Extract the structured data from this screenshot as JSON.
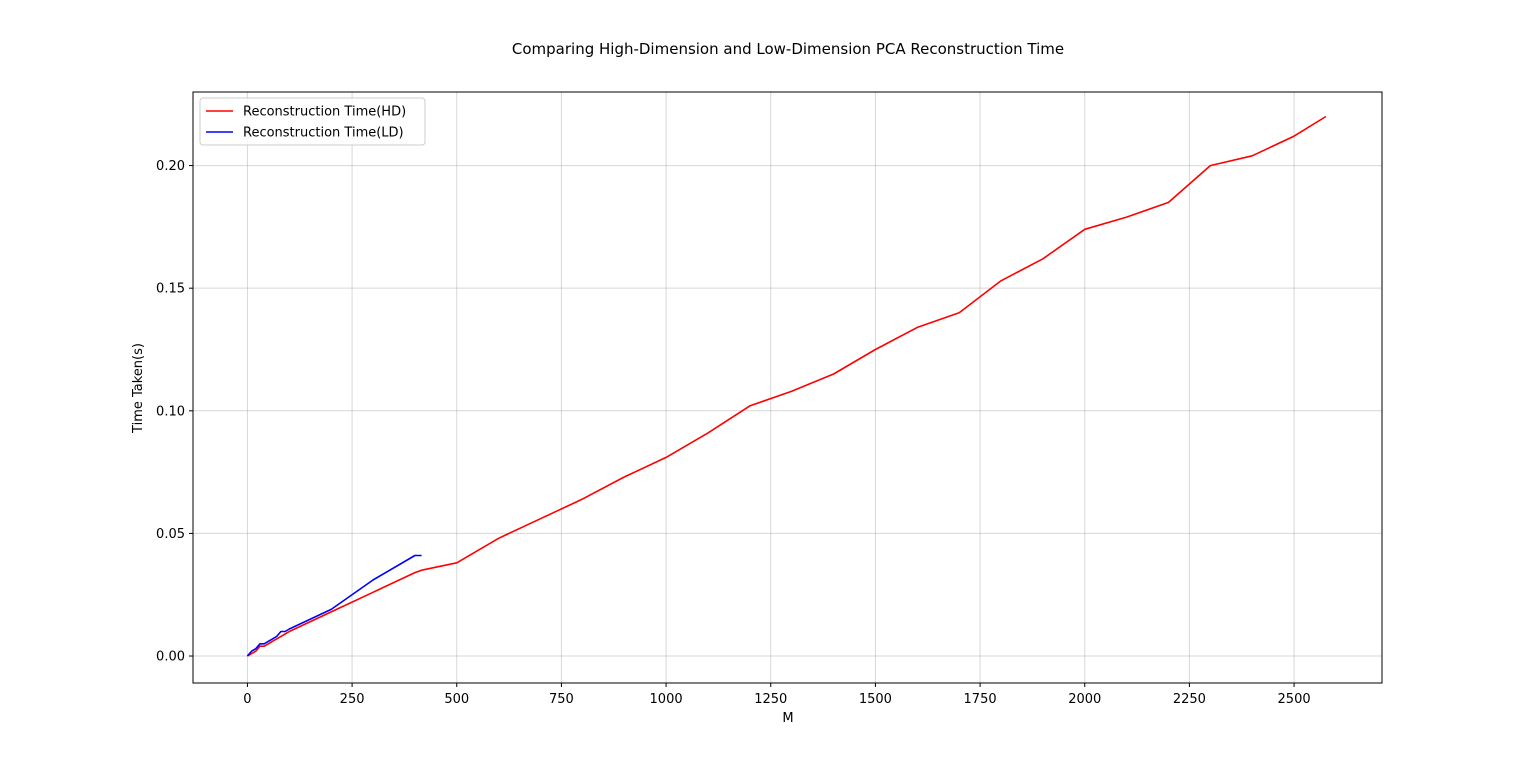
{
  "chart_data": {
    "type": "line",
    "title": "Comparing High-Dimension and Low-Dimension PCA Reconstruction Time",
    "xlabel": "M",
    "ylabel": "Time Taken(s)",
    "xlim": [
      -130,
      2710
    ],
    "ylim": [
      -0.011,
      0.23
    ],
    "xticks": [
      0,
      250,
      500,
      750,
      1000,
      1250,
      1500,
      1750,
      2000,
      2250,
      2500
    ],
    "xtick_labels": [
      "0",
      "250",
      "500",
      "750",
      "1000",
      "1250",
      "1500",
      "1750",
      "2000",
      "2250",
      "2500"
    ],
    "yticks": [
      0.0,
      0.05,
      0.1,
      0.15,
      0.2
    ],
    "ytick_labels": [
      "0.00",
      "0.05",
      "0.10",
      "0.15",
      "0.20"
    ],
    "grid": true,
    "legend_position": "top-left",
    "series": [
      {
        "name": "Reconstruction Time(HD)",
        "color": "#ff0000",
        "x": [
          0,
          10,
          20,
          30,
          40,
          50,
          60,
          70,
          80,
          90,
          100,
          200,
          300,
          400,
          416,
          500,
          600,
          700,
          800,
          900,
          1000,
          1100,
          1200,
          1300,
          1400,
          1500,
          1600,
          1700,
          1800,
          1900,
          2000,
          2100,
          2200,
          2300,
          2400,
          2500,
          2576
        ],
        "y": [
          0.0,
          0.001,
          0.002,
          0.004,
          0.004,
          0.005,
          0.006,
          0.007,
          0.008,
          0.009,
          0.01,
          0.018,
          0.026,
          0.034,
          0.035,
          0.038,
          0.048,
          0.056,
          0.064,
          0.073,
          0.081,
          0.091,
          0.102,
          0.108,
          0.115,
          0.125,
          0.134,
          0.14,
          0.153,
          0.162,
          0.174,
          0.179,
          0.185,
          0.2,
          0.204,
          0.212,
          0.22
        ]
      },
      {
        "name": "Reconstruction Time(LD)",
        "color": "#0000ff",
        "x": [
          0,
          10,
          20,
          30,
          40,
          50,
          60,
          70,
          80,
          90,
          100,
          200,
          300,
          400,
          416
        ],
        "y": [
          0.0,
          0.002,
          0.003,
          0.005,
          0.005,
          0.006,
          0.007,
          0.008,
          0.01,
          0.01,
          0.011,
          0.019,
          0.031,
          0.041,
          0.041
        ]
      }
    ]
  }
}
